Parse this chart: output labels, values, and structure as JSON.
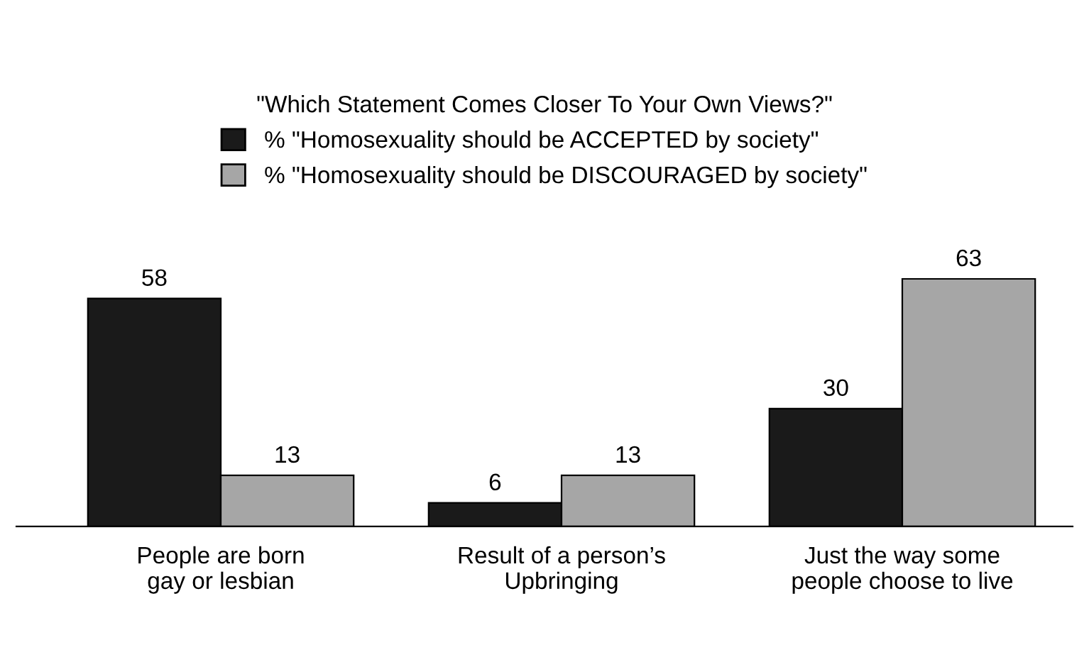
{
  "chart_data": {
    "type": "bar",
    "legend_title": "\"Which Statement Comes Closer To Your Own Views?\"",
    "categories": [
      "People are born\ngay or lesbian",
      "Result of a person’s\nUpbringing",
      "Just the way some\npeople choose to live"
    ],
    "series": [
      {
        "name": "% \"Homosexuality should be ACCEPTED by society\"",
        "color": "#1a1a1a",
        "values": [
          58,
          6,
          30
        ]
      },
      {
        "name": "% \"Homosexuality should be DISCOURAGED by society\"",
        "color": "#a6a6a6",
        "values": [
          13,
          13,
          63
        ]
      }
    ],
    "data_labels": true,
    "legend": "top",
    "grid": false
  }
}
